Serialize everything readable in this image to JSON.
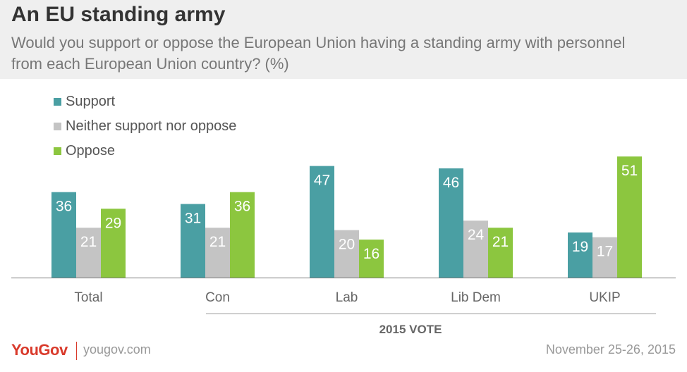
{
  "header": {
    "title": "An EU standing army",
    "subtitle": "Would you support or oppose the European Union having a standing army with personnel from each European Union country? (%)"
  },
  "colors": {
    "support": "#4a9fa3",
    "neither": "#c4c4c4",
    "oppose": "#8cc63f",
    "brand": "#d93a2b"
  },
  "chart_data": {
    "type": "bar",
    "title": "An EU standing army",
    "categories": [
      "Total",
      "Con",
      "Lab",
      "Lib Dem",
      "UKIP"
    ],
    "series": [
      {
        "name": "Support",
        "values": [
          36,
          31,
          47,
          46,
          19
        ]
      },
      {
        "name": "Neither support nor oppose",
        "values": [
          21,
          21,
          20,
          24,
          17
        ]
      },
      {
        "name": "Oppose",
        "values": [
          29,
          36,
          16,
          21,
          51
        ]
      }
    ],
    "group_label": "2015 VOTE",
    "ylim": [
      0,
      55
    ],
    "grid": false,
    "legend_position": "top-left"
  },
  "footer": {
    "logo": "YouGov",
    "site": "yougov.com",
    "date": "November 25-26, 2015"
  }
}
